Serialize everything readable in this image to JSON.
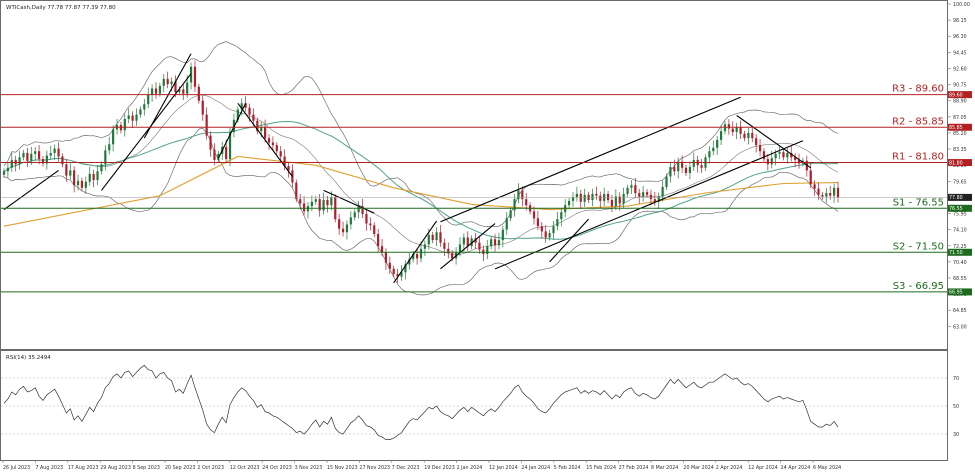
{
  "header": {
    "symbol_line": "WTICash,Daily  77.78 77.87 77.39 77.80",
    "rsi_label": "RSI(14) 35.2494"
  },
  "chart_data": {
    "type": "candlestick",
    "timeframe": "Daily",
    "price_axis": {
      "min": 62.35,
      "max": 100.0,
      "ticks": [
        "100.00",
        "98.15",
        "96.30",
        "94.45",
        "92.60",
        "90.75",
        "88.90",
        "87.05",
        "85.20",
        "83.35",
        "81.50",
        "79.65",
        "77.80",
        "75.95",
        "74.10",
        "72.25",
        "70.40",
        "68.55",
        "66.70",
        "64.85",
        "63.00"
      ],
      "current_price": 77.8
    },
    "x_axis": {
      "labels": [
        "26 Jul 2023",
        "7 Aug 2023",
        "17 Aug 2023",
        "29 Aug 2023",
        "8 Sep 2023",
        "20 Sep 2023",
        "2 Oct 2023",
        "12 Oct 2023",
        "24 Oct 2023",
        "3 Nov 2023",
        "15 Nov 2023",
        "27 Nov 2023",
        "7 Dec 2023",
        "19 Dec 2023",
        "2 Jan 2024",
        "12 Jan 2024",
        "24 Jan 2024",
        "5 Feb 2024",
        "15 Feb 2024",
        "27 Feb 2024",
        "8 Mar 2024",
        "20 Mar 2024",
        "2 Apr 2024",
        "12 Apr 2024",
        "24 Apr 2024",
        "6 May 2024"
      ]
    },
    "levels": [
      {
        "label": "R3 - 89.60",
        "value": 89.6,
        "tag": "89.60",
        "color": "#b22222"
      },
      {
        "label": "R2 - 85.85",
        "value": 85.85,
        "tag": "85.85",
        "color": "#b22222"
      },
      {
        "label": "R1 - 81.80",
        "value": 81.8,
        "tag": "81.80",
        "color": "#b22222"
      },
      {
        "label": "S1 - 76.55",
        "value": 76.55,
        "tag": "76.55",
        "color": "#1e6b1e"
      },
      {
        "label": "S2 - 71.50",
        "value": 71.5,
        "tag": "71.50",
        "color": "#1e6b1e"
      },
      {
        "label": "S3 - 66.95",
        "value": 66.95,
        "tag": "66.95",
        "color": "#1e6b1e"
      }
    ],
    "closes": [
      80.8,
      81.2,
      82.1,
      81.6,
      82.4,
      82.9,
      82.0,
      82.8,
      83.1,
      82.2,
      81.7,
      82.6,
      82.9,
      83.4,
      82.5,
      81.6,
      80.3,
      80.9,
      79.2,
      79.7,
      78.9,
      79.6,
      80.5,
      79.8,
      80.8,
      81.6,
      83.2,
      83.9,
      85.6,
      86.1,
      85.5,
      86.8,
      87.2,
      86.6,
      87.3,
      87.9,
      88.5,
      89.6,
      90.3,
      89.7,
      90.6,
      91.4,
      90.8,
      91.1,
      89.9,
      90.2,
      89.7,
      91.0,
      92.8,
      90.5,
      88.9,
      87.3,
      84.9,
      83.3,
      82.1,
      82.8,
      83.6,
      82.2,
      85.3,
      86.7,
      87.9,
      88.6,
      88.1,
      87.3,
      86.6,
      85.4,
      85.9,
      84.6,
      84.1,
      83.8,
      83.1,
      82.5,
      81.4,
      80.9,
      79.5,
      77.6,
      77.1,
      76.2,
      76.8,
      77.3,
      77.6,
      76.3,
      77.5,
      76.9,
      77.8,
      75.3,
      74.2,
      73.8,
      74.7,
      75.5,
      76.1,
      76.8,
      75.9,
      74.8,
      74.6,
      73.6,
      72.2,
      71.5,
      70.3,
      69.6,
      69.0,
      68.7,
      69.2,
      70.1,
      70.7,
      71.3,
      70.8,
      71.9,
      72.4,
      73.5,
      72.9,
      73.8,
      72.6,
      71.9,
      71.4,
      70.8,
      71.5,
      72.4,
      73.2,
      72.2,
      73.1,
      72.6,
      71.8,
      71.3,
      72.2,
      73.0,
      72.3,
      72.9,
      74.1,
      75.4,
      76.3,
      77.6,
      78.6,
      77.6,
      76.9,
      76.2,
      75.4,
      74.5,
      73.9,
      73.2,
      73.7,
      74.5,
      75.3,
      76.1,
      76.9,
      77.4,
      77.8,
      78.2,
      77.3,
      78.1,
      77.5,
      78.2,
      78.0,
      77.4,
      78.2,
      77.5,
      76.8,
      77.9,
      77.1,
      78.2,
      78.9,
      79.2,
      78.3,
      77.9,
      78.4,
      78.1,
      77.6,
      77.3,
      77.9,
      79.0,
      80.2,
      81.3,
      80.8,
      81.9,
      81.2,
      80.6,
      81.3,
      82.1,
      81.5,
      81.2,
      82.4,
      83.1,
      83.5,
      84.4,
      85.4,
      86.2,
      85.7,
      85.3,
      85.9,
      85.1,
      84.6,
      85.2,
      84.6,
      83.8,
      83.1,
      82.2,
      81.6,
      82.3,
      82.8,
      83.0,
      82.4,
      82.9,
      82.4,
      82.1,
      81.7,
      82.0,
      80.9,
      79.3,
      78.8,
      78.1,
      77.9,
      78.3,
      78.0,
      78.9,
      77.8
    ],
    "rsi": {
      "min": 0,
      "max": 100,
      "levels": [
        30,
        70
      ],
      "ticks": [
        "70",
        "50",
        "30"
      ],
      "values": [
        52,
        55,
        60,
        58,
        62,
        64,
        60,
        61,
        63,
        57,
        54,
        58,
        60,
        62,
        57,
        51,
        45,
        48,
        40,
        43,
        39,
        44,
        49,
        46,
        52,
        56,
        63,
        66,
        71,
        73,
        70,
        74,
        75,
        71,
        74,
        77,
        79,
        76,
        75,
        70,
        73,
        74,
        70,
        68,
        60,
        62,
        59,
        66,
        72,
        63,
        55,
        47,
        37,
        33,
        31,
        37,
        42,
        38,
        51,
        56,
        60,
        63,
        61,
        57,
        54,
        49,
        51,
        46,
        45,
        43,
        42,
        40,
        38,
        36,
        34,
        31,
        32,
        30,
        33,
        37,
        40,
        35,
        39,
        37,
        42,
        34,
        31,
        30,
        34,
        38,
        40,
        43,
        40,
        36,
        35,
        33,
        29,
        28,
        26,
        26,
        27,
        29,
        31,
        35,
        39,
        41,
        40,
        43,
        46,
        49,
        48,
        50,
        46,
        44,
        43,
        41,
        44,
        47,
        49,
        46,
        49,
        47,
        45,
        43,
        46,
        48,
        46,
        49,
        53,
        56,
        59,
        63,
        65,
        60,
        57,
        55,
        52,
        48,
        46,
        45,
        48,
        52,
        55,
        58,
        60,
        61,
        62,
        63,
        59,
        61,
        59,
        61,
        60,
        58,
        61,
        58,
        55,
        58,
        56,
        60,
        62,
        63,
        59,
        57,
        59,
        58,
        56,
        55,
        57,
        61,
        65,
        69,
        66,
        69,
        66,
        63,
        65,
        67,
        64,
        63,
        65,
        67,
        67,
        69,
        71,
        73,
        71,
        69,
        70,
        67,
        65,
        66,
        64,
        61,
        58,
        55,
        53,
        55,
        56,
        57,
        55,
        56,
        55,
        54,
        53,
        54,
        47,
        39,
        37,
        35,
        35,
        37,
        36,
        39,
        35
      ]
    },
    "ma_slow_start": 74.5,
    "ma_slow_points": [
      [
        0,
        74.5
      ],
      [
        40,
        78.0
      ],
      [
        60,
        82.5
      ],
      [
        80,
        81.5
      ],
      [
        100,
        78.9
      ],
      [
        120,
        77.0
      ],
      [
        140,
        76.4
      ],
      [
        160,
        76.8
      ],
      [
        180,
        78.3
      ],
      [
        200,
        79.4
      ],
      [
        214,
        79.5
      ]
    ],
    "trendlines": [
      [
        [
          0,
          76.4
        ],
        [
          14,
          80.9
        ]
      ],
      [
        [
          25,
          78.6
        ],
        [
          48,
          92.0
        ]
      ],
      [
        [
          36,
          84.6
        ],
        [
          48,
          94.3
        ]
      ],
      [
        [
          55,
          82.3
        ],
        [
          62,
          88.6
        ]
      ],
      [
        [
          60,
          88.6
        ],
        [
          74,
          80.2
        ]
      ],
      [
        [
          82,
          78.6
        ],
        [
          95,
          76.0
        ]
      ],
      [
        [
          100,
          68.0
        ],
        [
          111,
          75.1
        ]
      ],
      [
        [
          112,
          69.6
        ],
        [
          126,
          74.8
        ]
      ],
      [
        [
          112,
          75.0
        ],
        [
          189,
          89.3
        ]
      ],
      [
        [
          126,
          69.6
        ],
        [
          205,
          84.3
        ]
      ],
      [
        [
          140,
          70.4
        ],
        [
          150,
          75.3
        ]
      ],
      [
        [
          188,
          87.2
        ],
        [
          207,
          81.2
        ]
      ]
    ]
  }
}
